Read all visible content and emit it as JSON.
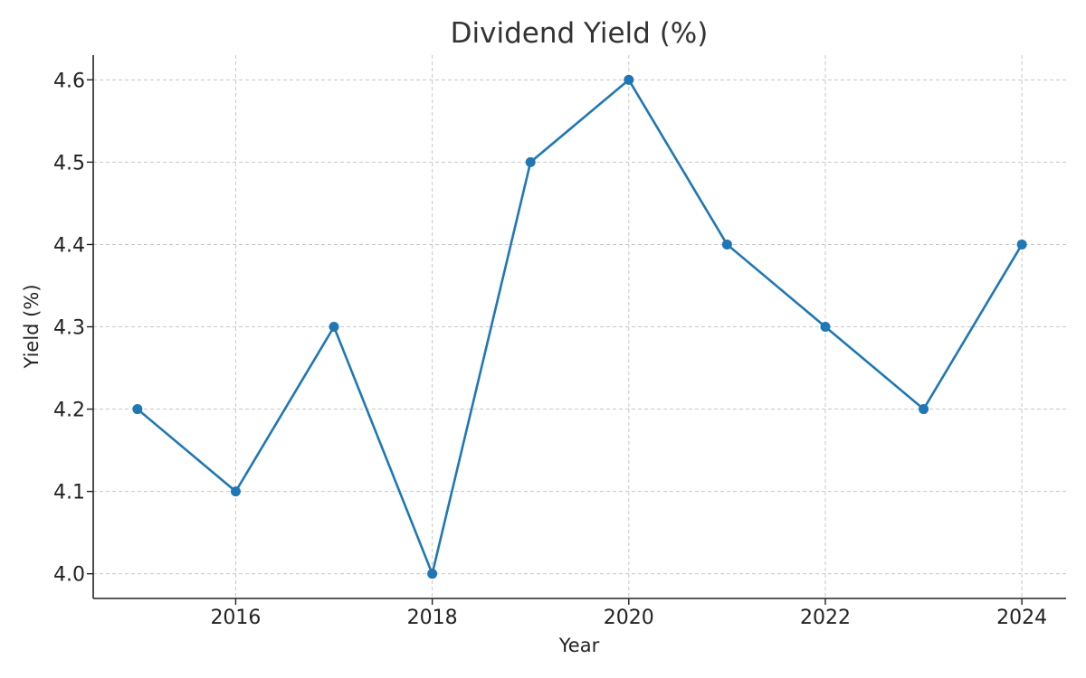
{
  "chart_data": {
    "type": "line",
    "title": "Dividend Yield (%)",
    "xlabel": "Year",
    "ylabel": "Yield (%)",
    "x": [
      2015,
      2016,
      2017,
      2018,
      2019,
      2020,
      2021,
      2022,
      2023,
      2024
    ],
    "series": [
      {
        "values": [
          4.2,
          4.1,
          4.3,
          4.0,
          4.5,
          4.6,
          4.4,
          4.3,
          4.2,
          4.4
        ]
      }
    ],
    "xlim": [
      2014.55,
      2024.45
    ],
    "ylim": [
      3.97,
      4.63
    ],
    "xticks": [
      2016,
      2018,
      2020,
      2022,
      2024
    ],
    "xtick_labels": [
      "2016",
      "2018",
      "2020",
      "2022",
      "2024"
    ],
    "yticks": [
      4.0,
      4.1,
      4.2,
      4.3,
      4.4,
      4.5,
      4.6
    ],
    "ytick_labels": [
      "4.0",
      "4.1",
      "4.2",
      "4.3",
      "4.4",
      "4.5",
      "4.6"
    ],
    "grid": true,
    "legend": "none",
    "colors": {
      "series": "#1f77b4",
      "grid": "#c8c8c8",
      "axis": "#222222",
      "title": "#333333"
    }
  }
}
